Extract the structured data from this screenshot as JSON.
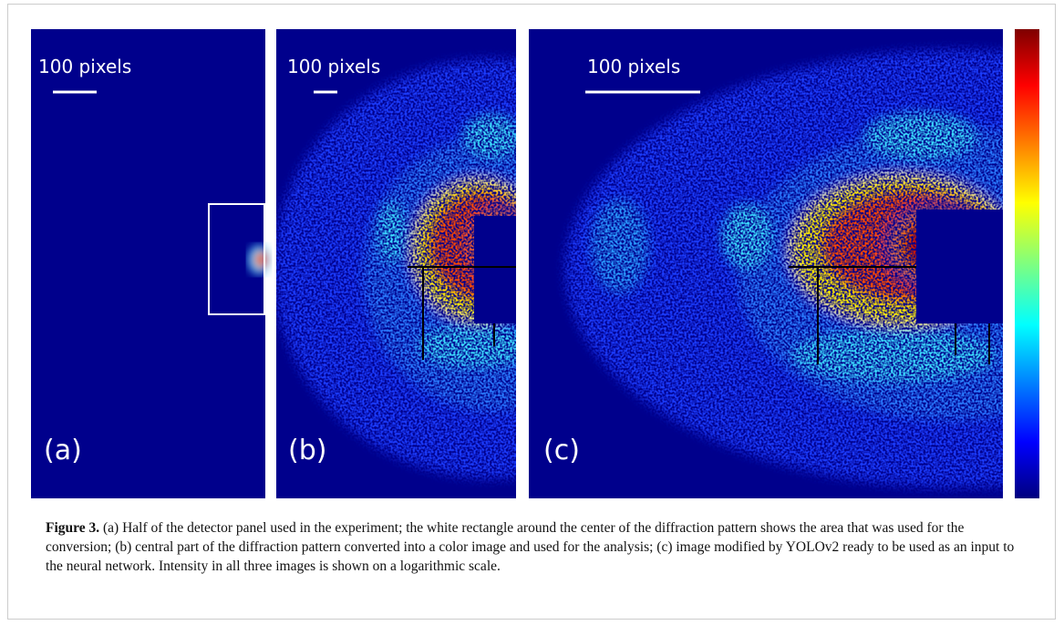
{
  "figure": {
    "panels": [
      {
        "label": "(a)",
        "scale": "100 pixels"
      },
      {
        "label": "(b)",
        "scale": "100 pixels"
      },
      {
        "label": "(c)",
        "scale": "100 pixels"
      }
    ],
    "caption": {
      "label": "Figure 3.",
      "text": "(a) Half of the detector panel used in the experiment; the white rectangle around the center of the diffraction pattern shows the area that was used for the conversion; (b) central part of the diffraction pattern converted into a color image and used for the analysis; (c) image modified by YOLOv2 ready to be used as an input to the neural network. Intensity in all three images is shown on a logarithmic scale."
    }
  }
}
